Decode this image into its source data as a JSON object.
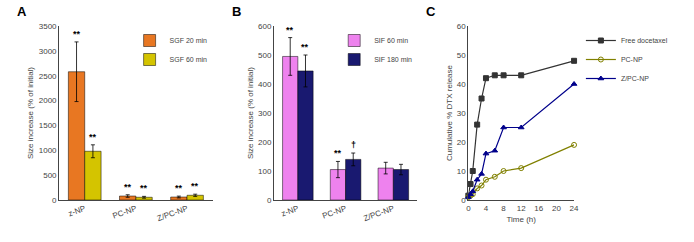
{
  "chart_data": [
    {
      "type": "bar",
      "title": "A",
      "categories": [
        "z-NP",
        "PC-NP",
        "Z/PC-NP"
      ],
      "ylabel": "Size increase (% of initial)",
      "ylim": [
        0,
        3500
      ],
      "yticks": [
        0,
        500,
        1000,
        1500,
        2000,
        2500,
        3000,
        3500
      ],
      "grid": false,
      "legend": "upper right",
      "series": [
        {
          "name": "SGF 20 min",
          "color": "#E87722",
          "values": [
            2580,
            80,
            60
          ],
          "errors": [
            600,
            25,
            18
          ],
          "annotations": [
            "**",
            "**",
            "**"
          ]
        },
        {
          "name": "SGF 60 min",
          "color": "#D4C400",
          "values": [
            980,
            55,
            95
          ],
          "errors": [
            130,
            18,
            22
          ],
          "annotations": [
            "**",
            "**",
            "**"
          ]
        }
      ]
    },
    {
      "type": "bar",
      "title": "B",
      "categories": [
        "z-NP",
        "PC-NP",
        "Z/PC-NP"
      ],
      "ylabel": "Size increase (% of initial)",
      "ylim": [
        0,
        600
      ],
      "yticks": [
        0,
        100,
        200,
        300,
        400,
        500,
        600
      ],
      "grid": false,
      "legend": "upper right",
      "series": [
        {
          "name": "SIF 60 min",
          "color": "#EE82EE",
          "values": [
            495,
            105,
            110
          ],
          "errors": [
            65,
            28,
            20
          ],
          "annotations": [
            "**",
            "**",
            null
          ]
        },
        {
          "name": "SIF 180 min",
          "color": "#191970",
          "values": [
            445,
            140,
            105
          ],
          "errors": [
            55,
            22,
            18
          ],
          "annotations": [
            "**",
            "†",
            null
          ]
        }
      ]
    },
    {
      "type": "line",
      "title": "C",
      "x": [
        0,
        0.5,
        1,
        2,
        3,
        4,
        6,
        8,
        12,
        24
      ],
      "xlabel": "Time (h)",
      "ylabel": "Cumulative % DTX release",
      "xlim": [
        0,
        24
      ],
      "ylim": [
        0,
        60
      ],
      "xticks": [
        0,
        4,
        8,
        12,
        16,
        20,
        24
      ],
      "yticks": [
        0,
        10,
        20,
        30,
        40,
        50,
        60
      ],
      "grid": false,
      "legend": "right",
      "series": [
        {
          "name": "Free docetaxel",
          "color": "#333333",
          "marker": "square",
          "values": [
            1.5,
            5.5,
            10,
            26,
            35,
            42,
            43,
            43,
            43,
            48
          ]
        },
        {
          "name": "PC-NP",
          "color": "#808000",
          "marker": "circle-open",
          "values": [
            1,
            1.5,
            2,
            4,
            5,
            7,
            8,
            10,
            11,
            19
          ]
        },
        {
          "name": "Z/PC-NP",
          "color": "#00008B",
          "marker": "triangle-up",
          "values": [
            1,
            2,
            3,
            7,
            9,
            16,
            17,
            25,
            25,
            40
          ]
        }
      ]
    }
  ]
}
